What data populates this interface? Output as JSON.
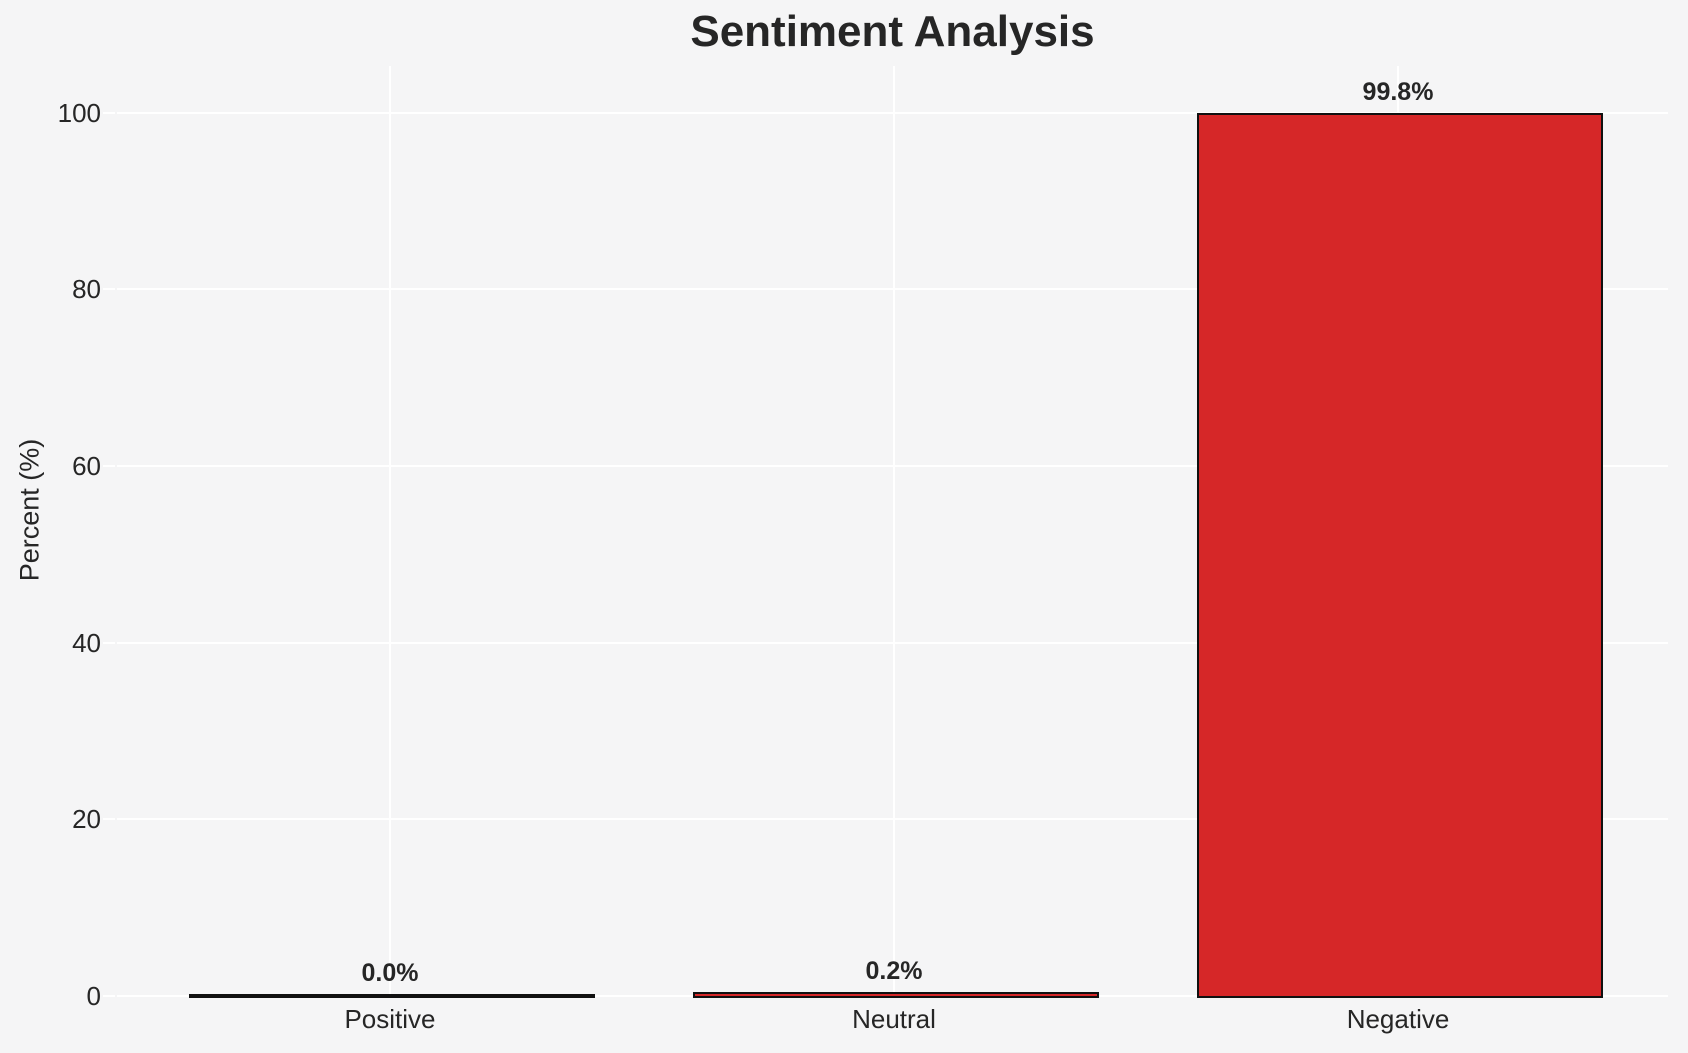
{
  "chart_data": {
    "type": "bar",
    "title": "Sentiment Analysis",
    "xlabel": "",
    "ylabel": "Percent (%)",
    "categories": [
      "Positive",
      "Neutral",
      "Negative"
    ],
    "values": [
      0.0,
      0.2,
      99.8
    ],
    "bar_labels": [
      "0.0%",
      "0.2%",
      "99.8%"
    ],
    "yticks": [
      0,
      20,
      40,
      60,
      80,
      100
    ],
    "ytick_labels": [
      "0",
      "20",
      "40",
      "60",
      "80",
      "100"
    ],
    "ylim": [
      0,
      105
    ],
    "grid": true,
    "legend": false,
    "colors": {
      "bar_fill": "#d62728",
      "bar_edge": "#111111",
      "background": "#f5f5f6",
      "gridline": "#ffffff",
      "text": "#262626"
    }
  }
}
